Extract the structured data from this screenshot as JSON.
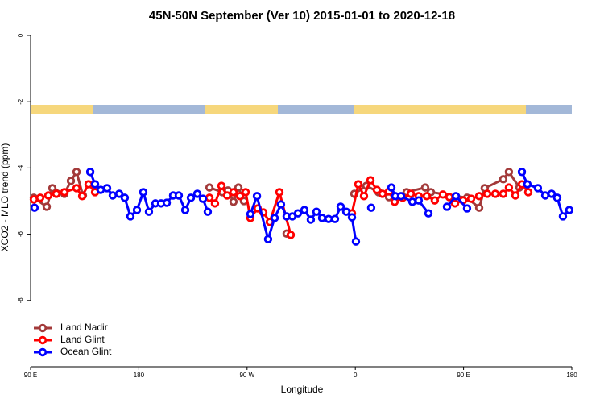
{
  "chart_data": {
    "type": "line",
    "title": "45N-50N September (Ver 10)   2015-01-01 to 2020-12-18",
    "xlabel": "Longitude",
    "ylabel": "XCO2 - MLO trend (ppm)",
    "xlim": [
      90,
      540
    ],
    "xticks": [
      {
        "value": 90,
        "label": "90 E"
      },
      {
        "value": 180,
        "label": "180"
      },
      {
        "value": 270,
        "label": "90 W"
      },
      {
        "value": 360,
        "label": "0"
      },
      {
        "value": 450,
        "label": "90 E"
      },
      {
        "value": 540,
        "label": "180"
      }
    ],
    "ylim": [
      -10,
      0.34
    ],
    "yticks": [
      0,
      -2,
      -4,
      -6,
      -8
    ],
    "legend": "bottom left",
    "series": [
      {
        "name": "Land Nadir",
        "color": "#a33a3a",
        "x": [
          92.7,
          103.4,
          108.1,
          118.1,
          123.5,
          128.2,
          133.5,
          null,
          238.7,
          249.4,
          254.1,
          258.7,
          262.8,
          267.4,
          null,
          302.9,
          null,
          359.2,
          369.2,
          379.3,
          388.0,
          402.7,
          418.1,
          422.8,
          452.9,
          463.0,
          467.6,
          483.0,
          487.7,
          496.4
        ],
        "values": [
          -4.9,
          -5.17,
          -4.61,
          -4.78,
          -4.39,
          -4.12,
          -4.83,
          null,
          -4.59,
          -4.73,
          -4.68,
          -5.02,
          -4.59,
          -5.0,
          null,
          -5.98,
          null,
          -4.78,
          -4.54,
          -4.73,
          -4.88,
          -4.73,
          -4.59,
          -4.73,
          -4.9,
          -5.2,
          -4.61,
          -4.34,
          -4.12,
          -4.59
        ]
      },
      {
        "name": "Land Glint",
        "color": "#ff0000",
        "x": [
          92.7,
          98.0,
          104.7,
          111.4,
          118.1,
          128.2,
          132.9,
          138.2,
          143.6,
          null,
          238.7,
          243.3,
          248.7,
          253.4,
          258.7,
          264.1,
          268.8,
          272.8,
          278.8,
          283.5,
          288.9,
          296.9,
          306.3,
          null,
          357.2,
          362.5,
          367.2,
          372.6,
          377.9,
          382.6,
          388.0,
          392.7,
          399.4,
          406.1,
          412.7,
          419.4,
          426.1,
          432.8,
          438.2,
          442.9,
          449.6,
          456.3,
          463.0,
          469.7,
          476.4,
          483.0,
          487.7,
          493.1,
          498.5,
          503.8
        ],
        "values": [
          -4.95,
          -4.9,
          -4.83,
          -4.78,
          -4.73,
          -4.61,
          -4.85,
          -4.49,
          -4.73,
          null,
          -4.9,
          -5.07,
          -4.54,
          -4.83,
          -4.73,
          -4.85,
          -4.73,
          -5.51,
          -5.22,
          -5.34,
          -5.63,
          -4.73,
          -6.02,
          null,
          -5.37,
          -4.49,
          -4.85,
          -4.37,
          -4.66,
          -4.78,
          -4.71,
          -5.02,
          -4.9,
          -4.78,
          -4.85,
          -4.85,
          -4.98,
          -4.8,
          -4.88,
          -5.07,
          -4.98,
          -4.93,
          -4.85,
          -4.78,
          -4.78,
          -4.78,
          -4.59,
          -4.83,
          -4.49,
          -4.73
        ]
      },
      {
        "name": "Ocean Glint",
        "color": "#0000ff",
        "x": [
          93.3,
          null,
          139.6,
          143.6,
          148.3,
          153.6,
          158.3,
          163.7,
          168.3,
          173.0,
          178.4,
          183.7,
          188.4,
          193.8,
          198.5,
          203.2,
          208.5,
          213.2,
          218.6,
          223.3,
          228.6,
          233.3,
          237.3,
          null,
          272.8,
          278.2,
          287.5,
          292.9,
          298.2,
          302.9,
          307.6,
          312.3,
          317.7,
          323.0,
          327.7,
          332.4,
          337.8,
          343.1,
          347.8,
          352.5,
          357.2,
          360.5,
          null,
          373.2,
          null,
          390.0,
          393.3,
          398.0,
          407.4,
          412.7,
          420.8,
          null,
          436.2,
          443.6,
          452.9,
          null,
          498.5,
          503.1,
          511.8,
          517.9,
          523.2,
          527.9,
          532.6,
          537.9
        ],
        "values": [
          -5.2,
          null,
          -4.12,
          -4.49,
          -4.66,
          -4.61,
          -4.83,
          -4.78,
          -4.9,
          -5.46,
          -5.27,
          -4.73,
          -5.32,
          -5.07,
          -5.07,
          -5.05,
          -4.83,
          -4.83,
          -5.27,
          -4.9,
          -4.78,
          -4.93,
          -5.32,
          null,
          -5.39,
          -4.85,
          -6.15,
          -5.51,
          -5.1,
          -5.46,
          -5.46,
          -5.37,
          -5.27,
          -5.56,
          -5.32,
          -5.51,
          -5.54,
          -5.54,
          -5.17,
          -5.32,
          -5.49,
          -6.22,
          null,
          -5.2,
          null,
          -4.59,
          -4.85,
          -4.85,
          -5.02,
          -4.98,
          -5.37,
          null,
          -5.17,
          -4.85,
          -5.22,
          null,
          -4.12,
          -4.49,
          -4.61,
          -4.83,
          -4.78,
          -4.9,
          -5.46,
          -5.27
        ]
      }
    ]
  }
}
